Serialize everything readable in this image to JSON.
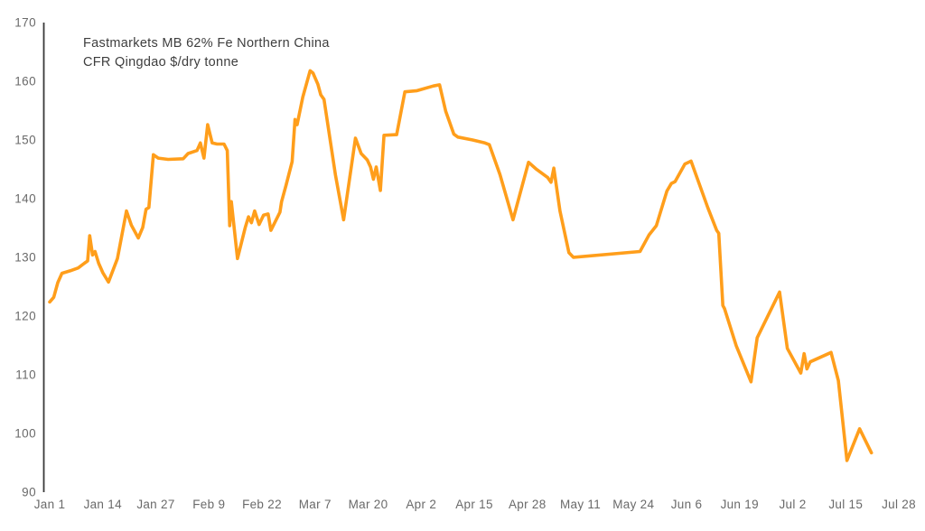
{
  "title": {
    "line1": "Fastmarkets MB 62% Fe Northern China",
    "line2": "CFR Qingdao $/dry tonne"
  },
  "colors": {
    "line": "#FF9E1B",
    "axis": "#3a3a3a",
    "tick_label": "#6a6a6a",
    "title_text": "#3e3e3e",
    "background": "#ffffff"
  },
  "chart_data": {
    "type": "line",
    "title": "Fastmarkets MB 62% Fe Northern China CFR Qingdao $/dry tonne",
    "xlabel": "",
    "ylabel": "$/dry tonne",
    "ylim": [
      90,
      170
    ],
    "y_ticks": [
      170,
      160,
      150,
      140,
      130,
      120,
      110,
      100,
      90
    ],
    "x_tick_labels": [
      "Jan 1",
      "Jan 14",
      "Jan 27",
      "Feb 9",
      "Feb 22",
      "Mar 7",
      "Mar 20",
      "Apr 2",
      "Apr 15",
      "Apr 28",
      "May 11",
      "May 24",
      "Jun 6",
      "Jun 19",
      "Jul 2",
      "Jul 15",
      "Jul 28"
    ],
    "x_tick_interval_days": 13,
    "xlim_days": [
      0,
      208
    ],
    "grid": false,
    "legend": "none",
    "points_format": "[day_offset_from_Jan1, price_usd_per_dry_tonne]",
    "points": [
      [
        0,
        122.4
      ],
      [
        1,
        123.2
      ],
      [
        2,
        125.7
      ],
      [
        3,
        127.3
      ],
      [
        5,
        127.7
      ],
      [
        7,
        128.2
      ],
      [
        8.5,
        129.0
      ],
      [
        9.3,
        129.4
      ],
      [
        9.8,
        133.7
      ],
      [
        10.5,
        130.4
      ],
      [
        11.1,
        131.0
      ],
      [
        12,
        129.0
      ],
      [
        13,
        127.4
      ],
      [
        14.4,
        125.8
      ],
      [
        16.6,
        129.8
      ],
      [
        18.8,
        137.9
      ],
      [
        20,
        135.5
      ],
      [
        21.7,
        133.3
      ],
      [
        22.8,
        135.1
      ],
      [
        23.6,
        138.2
      ],
      [
        24.3,
        138.5
      ],
      [
        25.4,
        147.5
      ],
      [
        26.6,
        146.9
      ],
      [
        29,
        146.7
      ],
      [
        32.7,
        146.8
      ],
      [
        33.9,
        147.7
      ],
      [
        36.1,
        148.2
      ],
      [
        36.9,
        149.5
      ],
      [
        37.8,
        146.9
      ],
      [
        38.7,
        152.6
      ],
      [
        39.8,
        149.5
      ],
      [
        41,
        149.3
      ],
      [
        42.7,
        149.3
      ],
      [
        43.5,
        148.2
      ],
      [
        44.1,
        135.4
      ],
      [
        44.5,
        139.5
      ],
      [
        46,
        129.8
      ],
      [
        47.9,
        135.1
      ],
      [
        48.7,
        136.9
      ],
      [
        49.4,
        135.9
      ],
      [
        50.2,
        137.9
      ],
      [
        51.3,
        135.6
      ],
      [
        52.4,
        137.2
      ],
      [
        53.5,
        137.4
      ],
      [
        54.2,
        134.6
      ],
      [
        56.4,
        137.7
      ],
      [
        56.8,
        139.5
      ],
      [
        57.9,
        142.3
      ],
      [
        59.4,
        146.3
      ],
      [
        60.1,
        153.5
      ],
      [
        60.6,
        152.6
      ],
      [
        62,
        157.3
      ],
      [
        63.8,
        161.8
      ],
      [
        64.5,
        161.4
      ],
      [
        65.7,
        159.5
      ],
      [
        66.4,
        157.7
      ],
      [
        67.2,
        156.9
      ],
      [
        70,
        144.1
      ],
      [
        72,
        136.4
      ],
      [
        74.9,
        150.3
      ],
      [
        76.3,
        147.7
      ],
      [
        77.8,
        146.6
      ],
      [
        78.6,
        145.4
      ],
      [
        79.3,
        143.3
      ],
      [
        80,
        145.4
      ],
      [
        81,
        141.4
      ],
      [
        81.9,
        150.8
      ],
      [
        85,
        150.9
      ],
      [
        87,
        158.2
      ],
      [
        90,
        158.4
      ],
      [
        94,
        159.2
      ],
      [
        95.5,
        159.4
      ],
      [
        97,
        154.9
      ],
      [
        99,
        151.0
      ],
      [
        100,
        150.5
      ],
      [
        103.6,
        150.0
      ],
      [
        106.6,
        149.5
      ],
      [
        107.7,
        149.2
      ],
      [
        110.3,
        144.1
      ],
      [
        113.5,
        136.4
      ],
      [
        117.3,
        146.2
      ],
      [
        119.1,
        145.1
      ],
      [
        122,
        143.6
      ],
      [
        122.8,
        142.8
      ],
      [
        123.5,
        145.2
      ],
      [
        125,
        137.9
      ],
      [
        127.2,
        130.8
      ],
      [
        128.3,
        130.0
      ],
      [
        144.6,
        131.0
      ],
      [
        146.8,
        133.8
      ],
      [
        148.6,
        135.4
      ],
      [
        151.2,
        141.3
      ],
      [
        152.3,
        142.6
      ],
      [
        153.2,
        142.9
      ],
      [
        155.6,
        145.9
      ],
      [
        157.1,
        146.4
      ],
      [
        161.2,
        138.5
      ],
      [
        163.4,
        134.6
      ],
      [
        163.9,
        134.1
      ],
      [
        164.9,
        121.8
      ],
      [
        165.3,
        121.3
      ],
      [
        168.2,
        114.9
      ],
      [
        171.8,
        108.8
      ],
      [
        173.3,
        116.3
      ],
      [
        178.8,
        124.1
      ],
      [
        180.7,
        114.5
      ],
      [
        184,
        110.3
      ],
      [
        184.8,
        113.6
      ],
      [
        185.5,
        111.0
      ],
      [
        186.3,
        112.2
      ],
      [
        191.4,
        113.8
      ],
      [
        193.2,
        109.0
      ],
      [
        195.3,
        95.4
      ],
      [
        198.4,
        100.8
      ],
      [
        201.3,
        96.7
      ]
    ]
  }
}
